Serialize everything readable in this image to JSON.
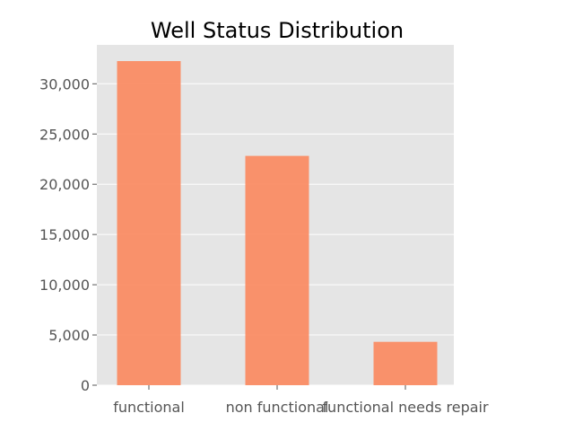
{
  "chart_data": {
    "type": "bar",
    "title": "Well Status Distribution",
    "xlabel": "",
    "ylabel": "",
    "categories": [
      "functional",
      "non functional",
      "functional needs repair"
    ],
    "values": [
      32259,
      22824,
      4317
    ],
    "ylim": [
      0,
      33870
    ],
    "yticks": [
      0,
      5000,
      10000,
      15000,
      20000,
      25000,
      30000
    ],
    "ytick_labels": [
      "0",
      "5,000",
      "10,000",
      "15,000",
      "20,000",
      "25,000",
      "30,000"
    ],
    "grid": true,
    "legend": "none",
    "bar_color": "#FA8C64",
    "plot_background": "#E5E5E5",
    "grid_color": "#FFFFFF"
  }
}
